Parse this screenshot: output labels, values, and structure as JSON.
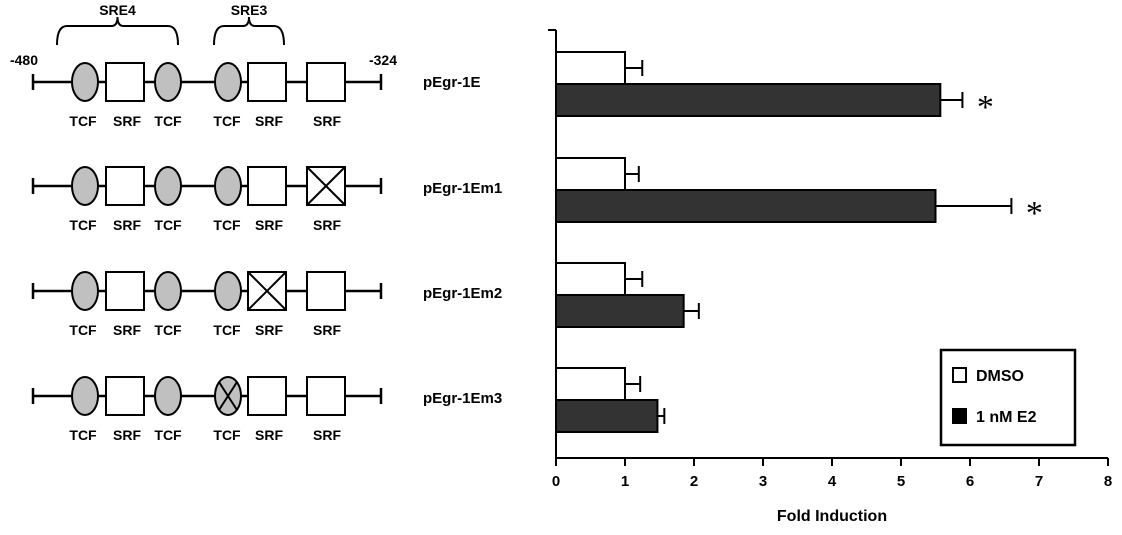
{
  "diagram": {
    "start_label": "-480",
    "end_label": "-324",
    "brackets": [
      "SRE4",
      "SRE3"
    ],
    "element_labels": [
      "TCF",
      "SRF",
      "TCF",
      "TCF",
      "SRF",
      "SRF"
    ],
    "constructs": [
      {
        "name": "pEgr-1E",
        "mutated": []
      },
      {
        "name": "pEgr-1Em1",
        "mutated": [
          5
        ]
      },
      {
        "name": "pEgr-1Em2",
        "mutated": [
          4
        ]
      },
      {
        "name": "pEgr-1Em3",
        "mutated": [
          3
        ]
      }
    ]
  },
  "chart_data": {
    "type": "bar",
    "orientation": "horizontal",
    "categories": [
      "pEgr-1E",
      "pEgr-1Em1",
      "pEgr-1Em2",
      "pEgr-1Em3"
    ],
    "series": [
      {
        "name": "DMSO",
        "color": "#ffffff",
        "values": [
          1.0,
          1.0,
          1.0,
          1.0
        ],
        "errors": [
          0.25,
          0.2,
          0.25,
          0.22
        ]
      },
      {
        "name": "1 nM E2",
        "color": "#333333",
        "values": [
          5.57,
          5.5,
          1.85,
          1.47
        ],
        "errors": [
          0.32,
          1.1,
          0.22,
          0.1
        ]
      }
    ],
    "significance": [
      "*",
      "*",
      "",
      ""
    ],
    "xlabel": "Fold Induction",
    "xlim": [
      0,
      8
    ],
    "xticks": [
      0,
      1,
      2,
      3,
      4,
      5,
      6,
      7,
      8
    ],
    "legend_position": "bottom-right",
    "grid": false
  }
}
